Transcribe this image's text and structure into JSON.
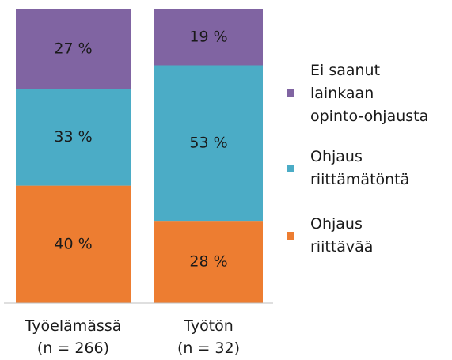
{
  "chart_data": {
    "type": "stacked_bar",
    "categories": [
      "Työelämässä\n(n = 266)",
      "Työtön\n(n = 32)"
    ],
    "series": [
      {
        "name": "Ohjaus\nriittävää",
        "color": "#ed7d31",
        "values": [
          40,
          28
        ],
        "value_labels": [
          "40 %",
          "28 %"
        ]
      },
      {
        "name": "Ohjaus\nriittämätöntä",
        "color": "#4bacc6",
        "values": [
          33,
          53
        ],
        "value_labels": [
          "33 %",
          "53 %"
        ]
      },
      {
        "name": "Ei saanut\nlainkaan\nopinto-ohjausta",
        "color": "#8064a2",
        "values": [
          27,
          19
        ],
        "value_labels": [
          "27 %",
          "19 %"
        ]
      }
    ]
  }
}
